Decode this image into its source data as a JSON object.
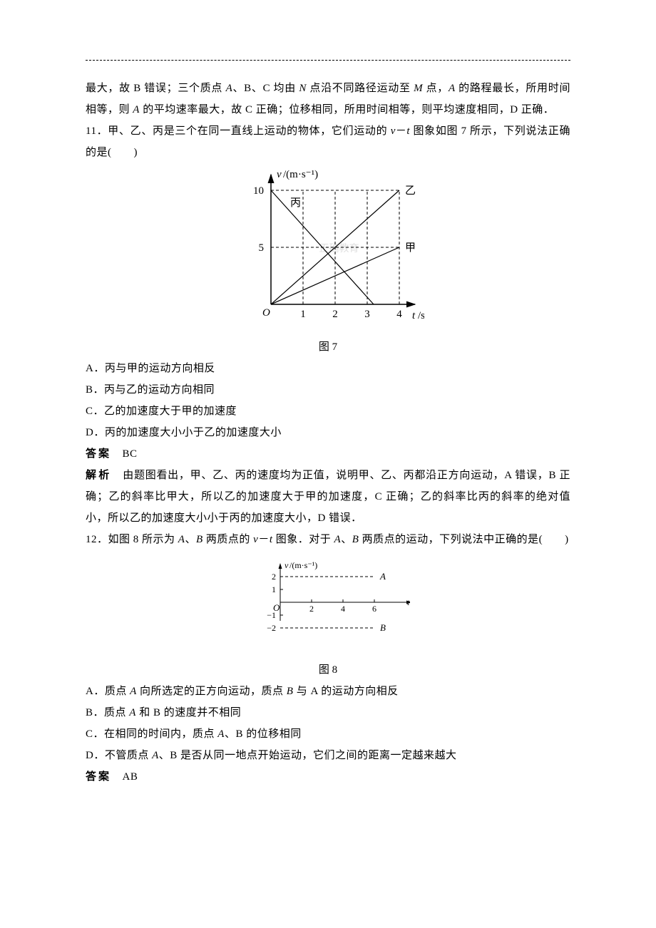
{
  "intro_para": "最大，故 B 错误；三个质点 A、B、C 均由 N 点沿不同路径运动至 M 点，A 的路程最长，所用时间相等，则 A 的平均速率最大，故 C 正确；位移相同，所用时间相等，则平均速度相同，D 正确．",
  "q11": {
    "stem": "11．甲、乙、丙是三个在同一直线上运动的物体，它们运动的 v－t 图象如图 7 所示，下列说法正确的是(　　)",
    "optA": "A．丙与甲的运动方向相反",
    "optB": "B．丙与乙的运动方向相同",
    "optC": "C．乙的加速度大于甲的加速度",
    "optD": "D．丙的加速度大小小于乙的加速度大小",
    "ans_label": "答案",
    "ans_val": "BC",
    "expl_label": "解析",
    "expl": "由题图看出，甲、乙、丙的速度均为正值，说明甲、乙、丙都沿正方向运动，A 错误，B 正确；乙的斜率比甲大，所以乙的加速度大于甲的加速度，C 正确；乙的斜率比丙的斜率的绝对值小，所以乙的加速度大小小于丙的加速度大小，D 错误．",
    "fig_caption": "图 7",
    "chart": {
      "type": "line",
      "background_color": "#ffffff",
      "axis_color": "#000000",
      "dash_color": "#000000",
      "line_color": "#000000",
      "line_width": 1.2,
      "watermark_color": "#e0e0e0",
      "watermark_text": "正确教育",
      "xlabel": "t/s",
      "ylabel": "v/(m·s⁻¹)",
      "xlim": [
        0,
        4
      ],
      "ylim": [
        0,
        10
      ],
      "xticks": [
        1,
        2,
        3,
        4
      ],
      "yticks": [
        5,
        10
      ],
      "series": {
        "jia": {
          "label": "甲",
          "pts": [
            [
              0,
              0
            ],
            [
              4,
              5
            ]
          ]
        },
        "yi": {
          "label": "乙",
          "pts": [
            [
              0,
              0
            ],
            [
              4,
              10
            ]
          ]
        },
        "bing": {
          "label": "丙",
          "pts": [
            [
              0,
              10
            ],
            [
              3.2,
              0
            ]
          ]
        }
      }
    }
  },
  "q12": {
    "stem": "12．如图 8 所示为 A、B 两质点的 v－t 图象．对于 A、B 两质点的运动，下列说法中正确的是(　　)",
    "optA": "A．质点 A 向所选定的正方向运动，质点 B 与 A 的运动方向相反",
    "optB": "B．质点 A 和 B 的速度并不相同",
    "optC": "C．在相同的时间内，质点 A、B 的位移相同",
    "optD": "D．不管质点 A、B 是否从同一地点开始运动，它们之间的距离一定越来越大",
    "ans_label": "答案",
    "ans_val": "AB",
    "fig_caption": "图 8",
    "chart": {
      "type": "line",
      "axis_color": "#000000",
      "dash_color": "#000000",
      "line_width": 1,
      "xlabel": "t/s",
      "ylabel": "v/(m·s⁻¹)",
      "xlim": [
        0,
        7
      ],
      "ylim": [
        -2,
        2
      ],
      "xticks": [
        2,
        4,
        6
      ],
      "yticks": [
        -2,
        -1,
        1,
        2
      ],
      "series": {
        "A": {
          "label": "A",
          "y": 2,
          "x_end": 6
        },
        "B": {
          "label": "B",
          "y": -2,
          "x_end": 6
        }
      }
    }
  }
}
